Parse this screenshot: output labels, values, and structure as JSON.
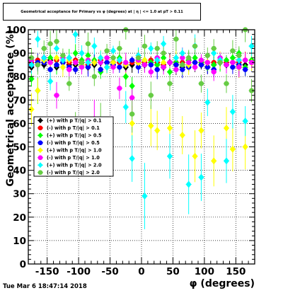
{
  "title": "Geometrical acceptance for Primary vs φ (degrees) at | η | <= 1.0 at pT > 0.11",
  "footer": {
    "timestamp": "Tue Mar  6 18:47:14 2018"
  },
  "chart_data": {
    "type": "scatter",
    "xlabel": "φ (degrees)",
    "ylabel": "Geometrical acceptance (%)",
    "xlim": [
      -180,
      180
    ],
    "ylim": [
      0,
      100
    ],
    "x_ticks": [
      -150,
      -100,
      -50,
      0,
      50,
      100,
      150
    ],
    "y_ticks": [
      0,
      10,
      20,
      30,
      40,
      50,
      60,
      70,
      80,
      90,
      100
    ],
    "grid": true,
    "legend_position": "middle-left",
    "series": [
      {
        "name": "(+) with p T/|q| > 0.1",
        "color": "#000000",
        "x": [
          -175,
          -165,
          -155,
          -145,
          -135,
          -125,
          -115,
          -105,
          -95,
          -85,
          -75,
          -65,
          -55,
          -45,
          -35,
          -25,
          -15,
          -5,
          5,
          15,
          25,
          35,
          45,
          55,
          65,
          75,
          85,
          95,
          105,
          115,
          125,
          135,
          145,
          155,
          165,
          175
        ],
        "y": [
          84,
          86,
          85,
          87,
          84,
          86,
          85,
          85,
          86,
          84,
          85,
          86,
          86,
          85,
          87,
          84,
          85,
          86,
          85,
          86,
          85,
          84,
          86,
          85,
          84,
          85,
          86,
          85,
          84,
          85,
          86,
          85,
          86,
          84,
          85,
          86
        ]
      },
      {
        "name": "(-) with p T/|q| > 0.1",
        "color": "#ff0000",
        "x": [
          -175,
          -165,
          -155,
          -145,
          -135,
          -125,
          -115,
          -105,
          -95,
          -85,
          -75,
          -65,
          -55,
          -45,
          -35,
          -25,
          -15,
          -5,
          5,
          15,
          25,
          35,
          45,
          55,
          65,
          75,
          85,
          95,
          105,
          115,
          125,
          135,
          145,
          155,
          165,
          175
        ],
        "y": [
          86,
          87,
          86,
          86,
          87,
          86,
          86,
          87,
          86,
          85,
          86,
          87,
          86,
          86,
          86,
          85,
          86,
          86,
          86,
          87,
          86,
          85,
          86,
          86,
          86,
          87,
          86,
          86,
          86,
          86,
          87,
          86,
          86,
          86,
          87,
          86
        ]
      },
      {
        "name": "(+) with p T/|q| > 0.5",
        "color": "#00ff00",
        "x": [
          -175,
          -165,
          -155,
          -145,
          -135,
          -125,
          -115,
          -105,
          -95,
          -85,
          -75,
          -65,
          -55,
          -45,
          -35,
          -25,
          -15,
          -5,
          5,
          15,
          25,
          35,
          45,
          55,
          65,
          75,
          85,
          95,
          105,
          115,
          125,
          135,
          145,
          155,
          165,
          175
        ],
        "y": [
          79,
          74,
          87,
          88,
          85,
          86,
          88,
          90,
          87,
          89,
          87,
          82,
          84,
          86,
          88,
          80,
          76,
          87,
          87,
          86,
          85,
          88,
          82,
          86,
          85,
          87,
          88,
          86,
          84,
          85,
          86,
          87,
          88,
          90,
          84,
          87
        ]
      },
      {
        "name": "(-) with p T/|q| > 0.5",
        "color": "#0000ff",
        "x": [
          -175,
          -165,
          -155,
          -145,
          -135,
          -125,
          -115,
          -105,
          -95,
          -85,
          -75,
          -65,
          -55,
          -45,
          -35,
          -25,
          -15,
          -5,
          5,
          15,
          25,
          35,
          45,
          55,
          65,
          75,
          85,
          95,
          105,
          115,
          125,
          135,
          145,
          155,
          165,
          175
        ],
        "y": [
          85,
          86,
          86,
          83,
          85,
          86,
          84,
          83,
          85,
          84,
          86,
          83,
          86,
          85,
          84,
          85,
          87,
          84,
          85,
          85,
          83,
          84,
          86,
          85,
          83,
          84,
          86,
          85,
          84,
          83,
          86,
          85,
          84,
          85,
          83,
          86
        ]
      },
      {
        "name": "(+) with p T/|q| > 1.0",
        "color": "#ffff00",
        "x": [
          -175,
          -165,
          -155,
          -145,
          -135,
          -125,
          -115,
          -105,
          -95,
          -85,
          -75,
          -65,
          -55,
          -45,
          -35,
          -25,
          -15,
          -5,
          5,
          15,
          25,
          35,
          45,
          55,
          65,
          75,
          85,
          95,
          105,
          115,
          125,
          135,
          145,
          155,
          165,
          175
        ],
        "y": [
          66,
          74,
          87,
          86,
          88,
          84,
          87,
          86,
          85,
          87,
          86,
          88,
          84,
          86,
          87,
          85,
          60,
          86,
          87,
          59,
          57,
          86,
          58,
          88,
          55,
          85,
          46,
          57,
          86,
          44,
          87,
          58,
          49,
          84,
          50,
          86
        ]
      },
      {
        "name": "(-) with p T/|q| > 1.0",
        "color": "#ff00ff",
        "x": [
          -175,
          -165,
          -155,
          -145,
          -135,
          -125,
          -115,
          -105,
          -95,
          -85,
          -75,
          -65,
          -55,
          -45,
          -35,
          -25,
          -15,
          -5,
          5,
          15,
          25,
          35,
          45,
          55,
          65,
          75,
          85,
          95,
          105,
          115,
          125,
          135,
          145,
          155,
          165,
          175
        ],
        "y": [
          87,
          85,
          88,
          86,
          72,
          88,
          83,
          86,
          84,
          87,
          62,
          86,
          88,
          84,
          75,
          86,
          71,
          87,
          85,
          82,
          88,
          84,
          86,
          83,
          88,
          86,
          84,
          87,
          86,
          82,
          88,
          85,
          86,
          84,
          87,
          86
        ]
      },
      {
        "name": "(+) with p T/|q| > 2.0",
        "color": "#00ffff",
        "x": [
          -175,
          -165,
          -155,
          -145,
          -135,
          -125,
          -115,
          -105,
          -95,
          -85,
          -75,
          -65,
          -55,
          -45,
          -35,
          -25,
          -15,
          -5,
          5,
          15,
          25,
          35,
          45,
          55,
          65,
          75,
          85,
          95,
          105,
          115,
          125,
          135,
          145,
          155,
          165,
          175
        ],
        "y": [
          85,
          96,
          88,
          78,
          92,
          87,
          88,
          98,
          90,
          86,
          93,
          88,
          84,
          91,
          87,
          67,
          45,
          89,
          29,
          92,
          87,
          94,
          46,
          88,
          90,
          34,
          93,
          37,
          69,
          90,
          87,
          44,
          65,
          87,
          61,
          93
        ]
      },
      {
        "name": "(-) with p T/|q| > 2.0",
        "color": "#66cc44",
        "x": [
          -175,
          -165,
          -155,
          -145,
          -135,
          -125,
          -115,
          -105,
          -95,
          -85,
          -75,
          -65,
          -55,
          -45,
          -35,
          -25,
          -15,
          -5,
          5,
          15,
          25,
          35,
          45,
          55,
          65,
          75,
          85,
          95,
          105,
          115,
          125,
          135,
          145,
          155,
          165,
          175
        ],
        "y": [
          88,
          85,
          92,
          94,
          95,
          89,
          77,
          58,
          86,
          94,
          80,
          60,
          91,
          88,
          92,
          100,
          64,
          88,
          93,
          72,
          92,
          90,
          77,
          96,
          85,
          88,
          93,
          77,
          89,
          92,
          86,
          77,
          91,
          89,
          100,
          74
        ]
      }
    ]
  }
}
